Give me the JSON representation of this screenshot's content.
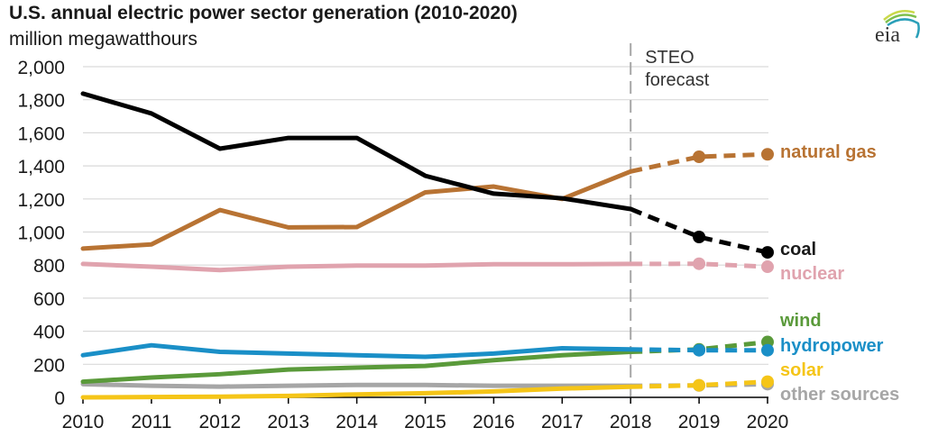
{
  "header": {
    "title": "U.S. annual electric power sector generation (2010-2020)",
    "subtitle": "million megawatthours",
    "logo_text": "eia"
  },
  "chart_data": {
    "type": "line",
    "title": "U.S. annual electric power sector generation (2010-2020)",
    "ylabel": "million megawatthours",
    "xlabel": "",
    "x": [
      2010,
      2011,
      2012,
      2013,
      2014,
      2015,
      2016,
      2017,
      2018,
      2019,
      2020
    ],
    "x_tick_labels": [
      "2010",
      "2011",
      "2012",
      "2013",
      "2014",
      "2015",
      "2016",
      "2017",
      "2018",
      "2019",
      "2020"
    ],
    "ylim": [
      0,
      2000
    ],
    "y_ticks": [
      0,
      200,
      400,
      600,
      800,
      1000,
      1200,
      1400,
      1600,
      1800,
      2000
    ],
    "y_tick_labels": [
      "0",
      "200",
      "400",
      "600",
      "800",
      "1,000",
      "1,200",
      "1,400",
      "1,600",
      "1,800",
      "2,000"
    ],
    "grid": true,
    "forecast_start": 2018,
    "forecast_label": [
      "STEO",
      "forecast"
    ],
    "legend_placement": "right (inline end labels)",
    "series": [
      {
        "name": "natural gas",
        "color": "#b87333",
        "values": [
          900,
          925,
          1133,
          1028,
          1030,
          1240,
          1275,
          1200,
          1366,
          1455,
          1470
        ]
      },
      {
        "name": "coal",
        "color": "#000000",
        "values": [
          1837,
          1717,
          1504,
          1569,
          1569,
          1340,
          1232,
          1204,
          1139,
          970,
          877
        ]
      },
      {
        "name": "nuclear",
        "color": "#e0a3ae",
        "values": [
          807,
          790,
          770,
          790,
          797,
          797,
          805,
          805,
          807,
          808,
          790
        ]
      },
      {
        "name": "wind",
        "color": "#5a9a3a",
        "values": [
          95,
          120,
          140,
          168,
          180,
          190,
          225,
          255,
          275,
          290,
          335
        ]
      },
      {
        "name": "hydropower",
        "color": "#1a8fc7",
        "values": [
          255,
          315,
          275,
          265,
          255,
          245,
          265,
          297,
          290,
          285,
          285
        ]
      },
      {
        "name": "solar",
        "color": "#f5c518",
        "values": [
          0,
          2,
          4,
          9,
          18,
          25,
          36,
          53,
          64,
          73,
          95
        ]
      },
      {
        "name": "other sources",
        "color": "#a6a6a6",
        "values": [
          80,
          70,
          65,
          70,
          75,
          75,
          70,
          70,
          70,
          72,
          80
        ]
      }
    ]
  }
}
